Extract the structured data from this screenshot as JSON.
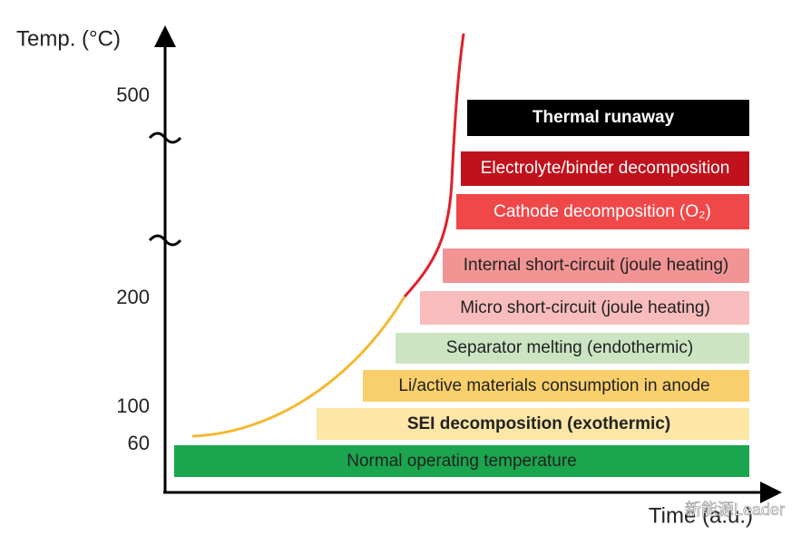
{
  "axes": {
    "y_label": "Temp. (°C)",
    "x_label": "Time (a.u.)",
    "y_ticks": [
      "500",
      "200",
      "100",
      "60"
    ]
  },
  "stages": [
    {
      "label": "Thermal runaway"
    },
    {
      "label": "Electrolyte/binder decomposition"
    },
    {
      "label": "Cathode decomposition (O₂)"
    },
    {
      "label": "Internal short-circuit (joule heating)"
    },
    {
      "label": "Micro short-circuit (joule heating)"
    },
    {
      "label": "Separator melting (endothermic)"
    },
    {
      "label": "Li/active materials consumption in anode"
    },
    {
      "label": "SEI decomposition (exothermic)"
    },
    {
      "label": "Normal operating temperature"
    }
  ],
  "watermark": "新能源Leader"
}
